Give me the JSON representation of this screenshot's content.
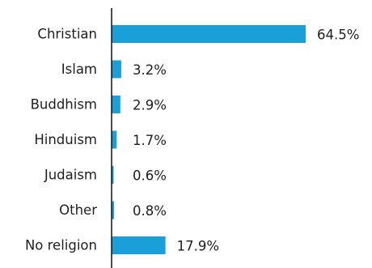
{
  "chart_data": {
    "type": "bar",
    "orientation": "horizontal",
    "categories": [
      "Christian",
      "Islam",
      "Buddhism",
      "Hinduism",
      "Judaism",
      "Other",
      "No religion"
    ],
    "values": [
      64.5,
      3.2,
      2.9,
      1.7,
      0.6,
      0.8,
      17.9
    ],
    "value_labels": [
      "64.5%",
      "3.2%",
      "2.9%",
      "1.7%",
      "0.6%",
      "0.8%",
      "17.9%"
    ],
    "unit": "%",
    "bar_color": "#1a9fd8",
    "axis_color": "#111111",
    "grid": false,
    "legend": "none"
  }
}
